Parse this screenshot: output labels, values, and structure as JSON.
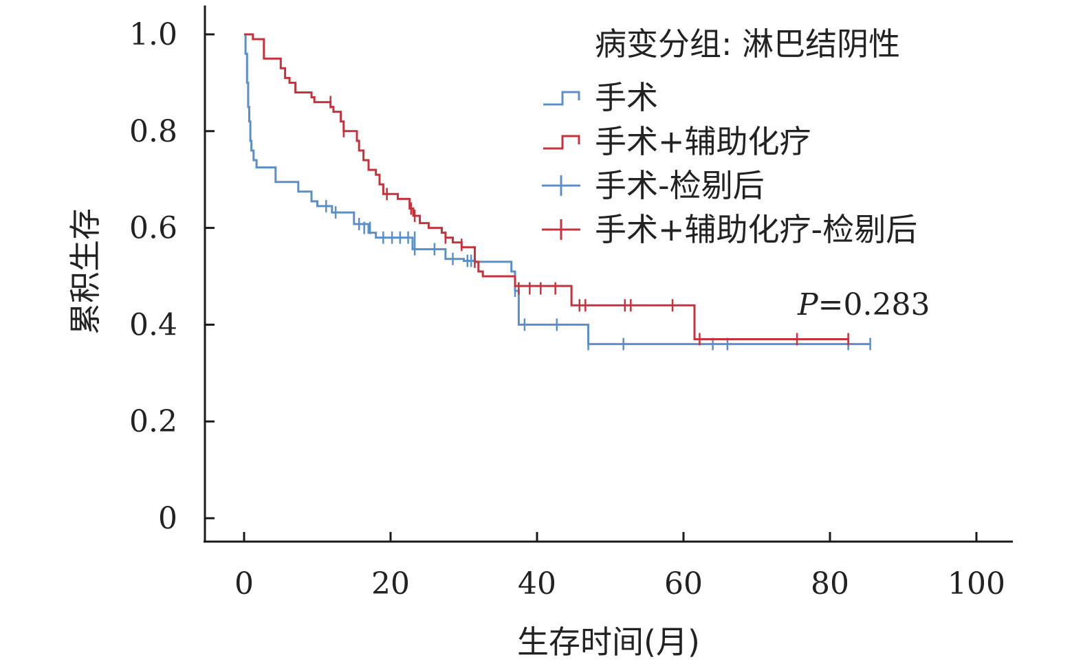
{
  "chart_data": {
    "type": "line",
    "subtype": "kaplan-meier",
    "xlabel": "生存时间(月)",
    "ylabel": "累积生存",
    "xlim": [
      0,
      100
    ],
    "ylim": [
      0,
      1.0
    ],
    "x_ticks": [
      "0",
      "20",
      "40",
      "60",
      "80",
      "100"
    ],
    "y_ticks": [
      "0",
      "0.2",
      "0.4",
      "0.6",
      "0.8",
      "1.0"
    ],
    "grid": false,
    "legend_title": "病变分组: 淋巴结阴性",
    "legend_position": "top-right",
    "p_value": {
      "label": "P",
      "value": "=0.283"
    },
    "series": [
      {
        "name": "手术",
        "color": "#5b8fc9",
        "steps": [
          [
            0,
            1.0
          ],
          [
            0.2,
            0.96
          ],
          [
            0.4,
            0.9
          ],
          [
            0.55,
            0.85
          ],
          [
            0.7,
            0.82
          ],
          [
            0.85,
            0.78
          ],
          [
            1.0,
            0.76
          ],
          [
            1.3,
            0.74
          ],
          [
            1.7,
            0.725
          ],
          [
            4.3,
            0.695
          ],
          [
            7.4,
            0.675
          ],
          [
            9.2,
            0.655
          ],
          [
            10.0,
            0.645
          ],
          [
            12.0,
            0.632
          ],
          [
            15.0,
            0.608
          ],
          [
            17.0,
            0.59
          ],
          [
            18.0,
            0.58
          ],
          [
            23.0,
            0.556
          ],
          [
            27.5,
            0.536
          ],
          [
            30.0,
            0.532
          ],
          [
            31.5,
            0.53
          ],
          [
            36.5,
            0.51
          ],
          [
            37.0,
            0.47
          ],
          [
            37.5,
            0.4
          ],
          [
            47.0,
            0.36
          ],
          [
            85.5,
            0.36
          ]
        ],
        "censored": [
          [
            11.2,
            0.645
          ],
          [
            12.5,
            0.632
          ],
          [
            15.7,
            0.608
          ],
          [
            16.4,
            0.6
          ],
          [
            17.2,
            0.6
          ],
          [
            19.0,
            0.58
          ],
          [
            20.2,
            0.58
          ],
          [
            21.3,
            0.58
          ],
          [
            22.4,
            0.58
          ],
          [
            23.3,
            0.58
          ],
          [
            23.3,
            0.556
          ],
          [
            26.0,
            0.556
          ],
          [
            28.5,
            0.536
          ],
          [
            30.5,
            0.532
          ],
          [
            31.0,
            0.532
          ],
          [
            37.0,
            0.47
          ],
          [
            38.3,
            0.4
          ],
          [
            42.7,
            0.4
          ],
          [
            47.0,
            0.36
          ],
          [
            51.8,
            0.36
          ],
          [
            64.0,
            0.36
          ],
          [
            66.0,
            0.36
          ],
          [
            82.5,
            0.36
          ],
          [
            85.5,
            0.36
          ]
        ]
      },
      {
        "name": "手术+辅助化疗",
        "color": "#c8303b",
        "steps": [
          [
            0,
            1.0
          ],
          [
            1.2,
            0.99
          ],
          [
            2.7,
            0.95
          ],
          [
            5.0,
            0.93
          ],
          [
            5.6,
            0.91
          ],
          [
            6.2,
            0.9
          ],
          [
            7.0,
            0.88
          ],
          [
            9.2,
            0.87
          ],
          [
            9.6,
            0.86
          ],
          [
            11.8,
            0.85
          ],
          [
            12.2,
            0.84
          ],
          [
            13.2,
            0.82
          ],
          [
            13.6,
            0.8
          ],
          [
            15.4,
            0.78
          ],
          [
            15.7,
            0.76
          ],
          [
            16.3,
            0.74
          ],
          [
            17.0,
            0.72
          ],
          [
            18.0,
            0.71
          ],
          [
            18.5,
            0.69
          ],
          [
            19.0,
            0.67
          ],
          [
            21.0,
            0.66
          ],
          [
            22.6,
            0.64
          ],
          [
            23.1,
            0.625
          ],
          [
            24.0,
            0.61
          ],
          [
            25.2,
            0.6
          ],
          [
            27.0,
            0.59
          ],
          [
            27.5,
            0.58
          ],
          [
            28.5,
            0.57
          ],
          [
            29.7,
            0.56
          ],
          [
            31.5,
            0.53
          ],
          [
            32.0,
            0.51
          ],
          [
            32.6,
            0.5
          ],
          [
            37.0,
            0.48
          ],
          [
            44.7,
            0.44
          ],
          [
            61.5,
            0.37
          ],
          [
            82.5,
            0.37
          ]
        ],
        "censored": [
          [
            11.8,
            0.86
          ],
          [
            13.6,
            0.8
          ],
          [
            19.5,
            0.67
          ],
          [
            22.8,
            0.64
          ],
          [
            23.3,
            0.625
          ],
          [
            27.5,
            0.58
          ],
          [
            29.7,
            0.565
          ],
          [
            31.5,
            0.53
          ],
          [
            37.5,
            0.475
          ],
          [
            39.0,
            0.475
          ],
          [
            40.5,
            0.475
          ],
          [
            42.5,
            0.475
          ],
          [
            45.8,
            0.44
          ],
          [
            46.6,
            0.44
          ],
          [
            52.0,
            0.44
          ],
          [
            52.8,
            0.44
          ],
          [
            58.5,
            0.44
          ],
          [
            62.2,
            0.37
          ],
          [
            75.5,
            0.37
          ],
          [
            82.5,
            0.37
          ]
        ]
      }
    ],
    "legend_entries": [
      {
        "label": "手术",
        "color": "#5b8fc9",
        "symbol": "step"
      },
      {
        "label": "手术+辅助化疗",
        "color": "#c8303b",
        "symbol": "step"
      },
      {
        "label": "手术-检剔后",
        "color": "#5b8fc9",
        "symbol": "plus"
      },
      {
        "label": "手术+辅助化疗-检剔后",
        "color": "#c8303b",
        "symbol": "plus"
      }
    ]
  }
}
